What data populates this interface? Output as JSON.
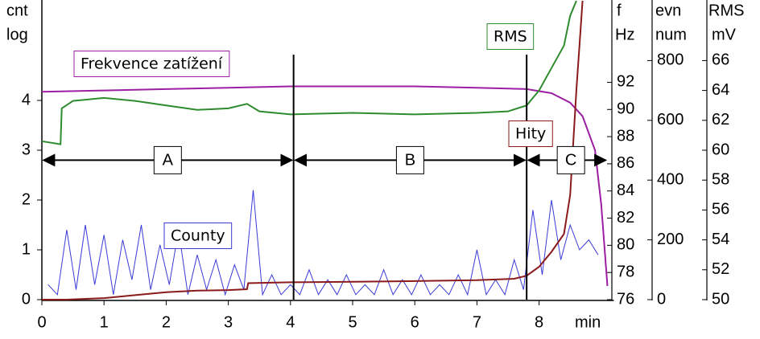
{
  "chart_data": {
    "type": "line",
    "xlabel": "min",
    "xlim": [
      0,
      9.1
    ],
    "xticks": [
      0,
      1,
      2,
      3,
      4,
      5,
      6,
      7,
      8
    ],
    "ylabel": [
      "cnt",
      "log"
    ],
    "ylim": [
      0,
      6
    ],
    "yticks": [
      0,
      1,
      2,
      3,
      4
    ],
    "y2label": [
      "f",
      "Hz"
    ],
    "y2lim": [
      76,
      98
    ],
    "y2ticks": [
      76,
      78,
      80,
      82,
      84,
      86,
      88,
      90,
      92
    ],
    "y3label": [
      "evn",
      "num"
    ],
    "y3lim": [
      0,
      1000
    ],
    "y3ticks": [
      0,
      200,
      400,
      600,
      800
    ],
    "y4label": [
      "RMS",
      "mV"
    ],
    "y4lim": [
      50,
      70
    ],
    "y4ticks": [
      50,
      52,
      54,
      56,
      58,
      60,
      62,
      64,
      66
    ],
    "series": [
      {
        "name": "County",
        "color": "#3a3ad6",
        "axis": "y",
        "x": [
          0.1,
          0.25,
          0.4,
          0.55,
          0.7,
          0.85,
          1.0,
          1.15,
          1.3,
          1.45,
          1.6,
          1.75,
          1.9,
          2.05,
          2.2,
          2.35,
          2.5,
          2.65,
          2.8,
          2.95,
          3.1,
          3.25,
          3.4,
          3.55,
          3.7,
          3.85,
          4.0,
          4.15,
          4.3,
          4.45,
          4.6,
          4.75,
          4.9,
          5.05,
          5.2,
          5.35,
          5.5,
          5.65,
          5.8,
          5.95,
          6.1,
          6.25,
          6.4,
          6.55,
          6.7,
          6.85,
          7.0,
          7.15,
          7.3,
          7.45,
          7.6,
          7.75,
          7.9,
          8.05,
          8.2,
          8.35,
          8.5,
          8.65,
          8.8,
          8.95
        ],
        "values": [
          0.3,
          0.1,
          1.4,
          0.2,
          1.5,
          0.3,
          1.3,
          0.1,
          1.2,
          0.4,
          1.5,
          0.2,
          1.1,
          0.3,
          1.4,
          0.1,
          0.9,
          0.2,
          0.8,
          0.1,
          0.7,
          0.2,
          2.2,
          0.1,
          0.5,
          0.1,
          0.3,
          0.1,
          0.6,
          0.1,
          0.4,
          0.1,
          0.5,
          0.1,
          0.3,
          0.1,
          0.6,
          0.1,
          0.4,
          0.1,
          0.5,
          0.1,
          0.3,
          0.1,
          0.5,
          0.1,
          1.0,
          0.1,
          0.4,
          0.1,
          0.8,
          0.2,
          1.8,
          0.5,
          2.0,
          0.8,
          1.5,
          1.0,
          1.2,
          0.9
        ]
      },
      {
        "name": "Frekvence zatížení",
        "color": "#9c1fa3",
        "axis": "y2",
        "x": [
          0,
          1,
          2,
          3,
          4,
          5,
          6,
          7,
          7.8,
          8.2,
          8.5,
          8.7,
          8.9,
          9.0,
          9.1
        ],
        "values": [
          91.3,
          91.4,
          91.5,
          91.6,
          91.7,
          91.7,
          91.7,
          91.6,
          91.5,
          91.2,
          90.5,
          89.5,
          87,
          83,
          77
        ]
      },
      {
        "name": "Hity",
        "color": "#8b1a1a",
        "axis": "y3",
        "x": [
          0,
          0.4,
          1,
          1.5,
          2,
          2.5,
          3,
          3.3,
          3.32,
          4,
          5,
          6,
          7,
          7.6,
          7.8,
          8.0,
          8.2,
          8.4,
          8.5,
          8.6,
          8.7
        ],
        "values": [
          0,
          0,
          5,
          15,
          25,
          30,
          32,
          35,
          55,
          58,
          60,
          62,
          65,
          70,
          80,
          110,
          160,
          220,
          350,
          700,
          1000
        ]
      },
      {
        "name": "RMS",
        "color": "#2e8b2e",
        "axis": "y4",
        "x": [
          0,
          0.3,
          0.32,
          0.5,
          1,
          1.5,
          2,
          2.5,
          3,
          3.3,
          3.5,
          4,
          5,
          6,
          7,
          7.5,
          7.8,
          8,
          8.2,
          8.4,
          8.5,
          8.6
        ],
        "values": [
          60.6,
          60.4,
          62.8,
          63.3,
          63.5,
          63.3,
          63.0,
          62.7,
          62.8,
          63.1,
          62.6,
          62.4,
          62.5,
          62.4,
          62.5,
          62.6,
          63.0,
          64,
          65.5,
          67,
          69,
          70
        ]
      }
    ],
    "vlines": [
      4.05,
      7.8
    ],
    "regions": [
      {
        "label": "A",
        "from": 0,
        "to": 4.05
      },
      {
        "label": "B",
        "from": 4.05,
        "to": 7.8
      },
      {
        "label": "C",
        "from": 7.8,
        "to": 9.1
      }
    ],
    "region_arrow_y": 2.8
  }
}
